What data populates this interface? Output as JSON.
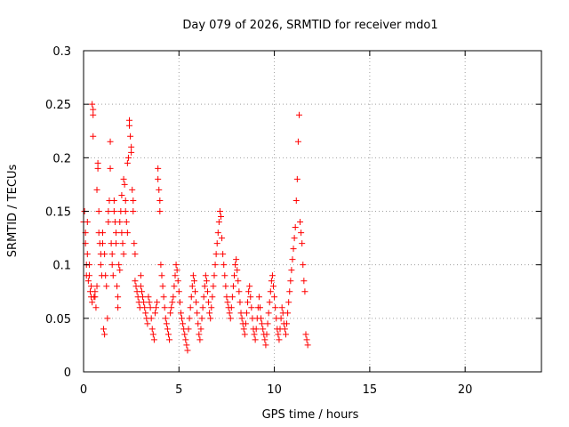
{
  "chart_data": {
    "type": "scatter",
    "title": "Day 079 of 2026, SRMTID for receiver mdo1",
    "xlabel": "GPS time / hours",
    "ylabel": "SRMTID / TECUs",
    "xlim": [
      0,
      24
    ],
    "ylim": [
      0,
      0.3
    ],
    "xticks": [
      0,
      5,
      10,
      15,
      20
    ],
    "xtick_labels": [
      "0",
      "5",
      "10",
      "15",
      "20"
    ],
    "yticks": [
      0,
      0.05,
      0.1,
      0.15,
      0.2,
      0.25,
      0.3
    ],
    "ytick_labels": [
      "0",
      "0.05",
      "0.1",
      "0.15",
      "0.2",
      "0.25",
      "0.3"
    ],
    "grid": true,
    "marker": "+",
    "color": "#ff0000",
    "series": [
      {
        "name": "SRMTID",
        "points": [
          [
            0.0,
            0.14
          ],
          [
            0.05,
            0.15
          ],
          [
            0.1,
            0.13
          ],
          [
            0.1,
            0.12
          ],
          [
            0.15,
            0.1
          ],
          [
            0.15,
            0.09
          ],
          [
            0.2,
            0.11
          ],
          [
            0.2,
            0.14
          ],
          [
            0.25,
            0.085
          ],
          [
            0.3,
            0.09
          ],
          [
            0.3,
            0.1
          ],
          [
            0.35,
            0.075
          ],
          [
            0.4,
            0.07
          ],
          [
            0.4,
            0.08
          ],
          [
            0.45,
            0.065
          ],
          [
            0.45,
            0.25
          ],
          [
            0.5,
            0.245
          ],
          [
            0.5,
            0.24
          ],
          [
            0.5,
            0.22
          ],
          [
            0.55,
            0.07
          ],
          [
            0.6,
            0.075
          ],
          [
            0.6,
            0.07
          ],
          [
            0.65,
            0.06
          ],
          [
            0.7,
            0.17
          ],
          [
            0.7,
            0.08
          ],
          [
            0.75,
            0.19
          ],
          [
            0.75,
            0.195
          ],
          [
            0.8,
            0.15
          ],
          [
            0.8,
            0.13
          ],
          [
            0.85,
            0.12
          ],
          [
            0.9,
            0.11
          ],
          [
            0.9,
            0.1
          ],
          [
            0.95,
            0.09
          ],
          [
            1.0,
            0.12
          ],
          [
            1.0,
            0.13
          ],
          [
            1.05,
            0.04
          ],
          [
            1.1,
            0.035
          ],
          [
            1.1,
            0.11
          ],
          [
            1.15,
            0.09
          ],
          [
            1.2,
            0.08
          ],
          [
            1.25,
            0.05
          ],
          [
            1.3,
            0.14
          ],
          [
            1.3,
            0.15
          ],
          [
            1.35,
            0.16
          ],
          [
            1.4,
            0.19
          ],
          [
            1.4,
            0.215
          ],
          [
            1.45,
            0.12
          ],
          [
            1.5,
            0.11
          ],
          [
            1.5,
            0.1
          ],
          [
            1.55,
            0.09
          ],
          [
            1.6,
            0.16
          ],
          [
            1.6,
            0.15
          ],
          [
            1.65,
            0.14
          ],
          [
            1.7,
            0.13
          ],
          [
            1.7,
            0.12
          ],
          [
            1.75,
            0.08
          ],
          [
            1.8,
            0.07
          ],
          [
            1.8,
            0.06
          ],
          [
            1.85,
            0.1
          ],
          [
            1.9,
            0.095
          ],
          [
            1.9,
            0.14
          ],
          [
            1.95,
            0.15
          ],
          [
            2.0,
            0.165
          ],
          [
            2.0,
            0.13
          ],
          [
            2.05,
            0.12
          ],
          [
            2.1,
            0.11
          ],
          [
            2.1,
            0.18
          ],
          [
            2.15,
            0.175
          ],
          [
            2.2,
            0.16
          ],
          [
            2.2,
            0.15
          ],
          [
            2.25,
            0.14
          ],
          [
            2.3,
            0.13
          ],
          [
            2.3,
            0.195
          ],
          [
            2.35,
            0.2
          ],
          [
            2.4,
            0.235
          ],
          [
            2.4,
            0.23
          ],
          [
            2.45,
            0.22
          ],
          [
            2.5,
            0.21
          ],
          [
            2.5,
            0.205
          ],
          [
            2.55,
            0.17
          ],
          [
            2.6,
            0.16
          ],
          [
            2.6,
            0.15
          ],
          [
            2.65,
            0.12
          ],
          [
            2.7,
            0.11
          ],
          [
            2.7,
            0.085
          ],
          [
            2.75,
            0.08
          ],
          [
            2.8,
            0.075
          ],
          [
            2.85,
            0.07
          ],
          [
            2.9,
            0.065
          ],
          [
            2.95,
            0.06
          ],
          [
            3.0,
            0.08
          ],
          [
            3.0,
            0.09
          ],
          [
            3.05,
            0.075
          ],
          [
            3.1,
            0.07
          ],
          [
            3.15,
            0.065
          ],
          [
            3.2,
            0.06
          ],
          [
            3.25,
            0.055
          ],
          [
            3.3,
            0.05
          ],
          [
            3.35,
            0.045
          ],
          [
            3.4,
            0.07
          ],
          [
            3.45,
            0.065
          ],
          [
            3.5,
            0.06
          ],
          [
            3.55,
            0.05
          ],
          [
            3.6,
            0.04
          ],
          [
            3.65,
            0.035
          ],
          [
            3.7,
            0.03
          ],
          [
            3.75,
            0.055
          ],
          [
            3.8,
            0.06
          ],
          [
            3.85,
            0.065
          ],
          [
            3.9,
            0.19
          ],
          [
            3.9,
            0.18
          ],
          [
            3.95,
            0.17
          ],
          [
            4.0,
            0.16
          ],
          [
            4.0,
            0.15
          ],
          [
            4.05,
            0.1
          ],
          [
            4.1,
            0.09
          ],
          [
            4.15,
            0.08
          ],
          [
            4.2,
            0.07
          ],
          [
            4.25,
            0.06
          ],
          [
            4.3,
            0.05
          ],
          [
            4.35,
            0.045
          ],
          [
            4.4,
            0.04
          ],
          [
            4.45,
            0.035
          ],
          [
            4.5,
            0.03
          ],
          [
            4.55,
            0.055
          ],
          [
            4.6,
            0.06
          ],
          [
            4.65,
            0.065
          ],
          [
            4.7,
            0.07
          ],
          [
            4.75,
            0.08
          ],
          [
            4.8,
            0.09
          ],
          [
            4.85,
            0.1
          ],
          [
            4.9,
            0.095
          ],
          [
            4.95,
            0.085
          ],
          [
            5.0,
            0.075
          ],
          [
            5.05,
            0.065
          ],
          [
            5.1,
            0.055
          ],
          [
            5.15,
            0.05
          ],
          [
            5.2,
            0.045
          ],
          [
            5.25,
            0.04
          ],
          [
            5.3,
            0.035
          ],
          [
            5.35,
            0.03
          ],
          [
            5.4,
            0.025
          ],
          [
            5.45,
            0.02
          ],
          [
            5.5,
            0.04
          ],
          [
            5.55,
            0.05
          ],
          [
            5.6,
            0.06
          ],
          [
            5.65,
            0.07
          ],
          [
            5.7,
            0.08
          ],
          [
            5.75,
            0.09
          ],
          [
            5.8,
            0.085
          ],
          [
            5.85,
            0.075
          ],
          [
            5.9,
            0.065
          ],
          [
            5.95,
            0.055
          ],
          [
            6.0,
            0.045
          ],
          [
            6.05,
            0.035
          ],
          [
            6.1,
            0.03
          ],
          [
            6.15,
            0.04
          ],
          [
            6.2,
            0.05
          ],
          [
            6.25,
            0.06
          ],
          [
            6.3,
            0.07
          ],
          [
            6.35,
            0.08
          ],
          [
            6.4,
            0.09
          ],
          [
            6.45,
            0.085
          ],
          [
            6.5,
            0.075
          ],
          [
            6.55,
            0.065
          ],
          [
            6.6,
            0.055
          ],
          [
            6.65,
            0.05
          ],
          [
            6.7,
            0.06
          ],
          [
            6.75,
            0.07
          ],
          [
            6.8,
            0.08
          ],
          [
            6.85,
            0.09
          ],
          [
            6.9,
            0.1
          ],
          [
            6.95,
            0.11
          ],
          [
            7.0,
            0.12
          ],
          [
            7.05,
            0.13
          ],
          [
            7.1,
            0.14
          ],
          [
            7.15,
            0.15
          ],
          [
            7.2,
            0.145
          ],
          [
            7.25,
            0.125
          ],
          [
            7.3,
            0.11
          ],
          [
            7.35,
            0.1
          ],
          [
            7.4,
            0.09
          ],
          [
            7.45,
            0.08
          ],
          [
            7.5,
            0.07
          ],
          [
            7.55,
            0.065
          ],
          [
            7.6,
            0.06
          ],
          [
            7.65,
            0.055
          ],
          [
            7.7,
            0.05
          ],
          [
            7.75,
            0.06
          ],
          [
            7.8,
            0.07
          ],
          [
            7.85,
            0.08
          ],
          [
            7.9,
            0.09
          ],
          [
            7.95,
            0.1
          ],
          [
            8.0,
            0.105
          ],
          [
            8.05,
            0.095
          ],
          [
            8.1,
            0.085
          ],
          [
            8.15,
            0.075
          ],
          [
            8.2,
            0.065
          ],
          [
            8.25,
            0.055
          ],
          [
            8.3,
            0.05
          ],
          [
            8.35,
            0.045
          ],
          [
            8.4,
            0.04
          ],
          [
            8.45,
            0.035
          ],
          [
            8.5,
            0.045
          ],
          [
            8.55,
            0.055
          ],
          [
            8.6,
            0.065
          ],
          [
            8.65,
            0.075
          ],
          [
            8.7,
            0.08
          ],
          [
            8.75,
            0.07
          ],
          [
            8.8,
            0.06
          ],
          [
            8.85,
            0.05
          ],
          [
            8.9,
            0.04
          ],
          [
            8.95,
            0.035
          ],
          [
            9.0,
            0.03
          ],
          [
            9.05,
            0.04
          ],
          [
            9.1,
            0.05
          ],
          [
            9.15,
            0.06
          ],
          [
            9.2,
            0.07
          ],
          [
            9.25,
            0.06
          ],
          [
            9.3,
            0.05
          ],
          [
            9.35,
            0.045
          ],
          [
            9.4,
            0.04
          ],
          [
            9.45,
            0.035
          ],
          [
            9.5,
            0.03
          ],
          [
            9.55,
            0.025
          ],
          [
            9.6,
            0.035
          ],
          [
            9.65,
            0.045
          ],
          [
            9.7,
            0.055
          ],
          [
            9.75,
            0.065
          ],
          [
            9.8,
            0.075
          ],
          [
            9.85,
            0.085
          ],
          [
            9.9,
            0.09
          ],
          [
            9.95,
            0.08
          ],
          [
            10.0,
            0.07
          ],
          [
            10.05,
            0.06
          ],
          [
            10.1,
            0.05
          ],
          [
            10.15,
            0.04
          ],
          [
            10.2,
            0.035
          ],
          [
            10.25,
            0.03
          ],
          [
            10.3,
            0.04
          ],
          [
            10.35,
            0.05
          ],
          [
            10.4,
            0.06
          ],
          [
            10.45,
            0.055
          ],
          [
            10.5,
            0.045
          ],
          [
            10.55,
            0.04
          ],
          [
            10.6,
            0.035
          ],
          [
            10.65,
            0.045
          ],
          [
            10.7,
            0.055
          ],
          [
            10.75,
            0.065
          ],
          [
            10.8,
            0.075
          ],
          [
            10.85,
            0.085
          ],
          [
            10.9,
            0.095
          ],
          [
            10.95,
            0.105
          ],
          [
            11.0,
            0.115
          ],
          [
            11.05,
            0.125
          ],
          [
            11.1,
            0.135
          ],
          [
            11.15,
            0.16
          ],
          [
            11.2,
            0.18
          ],
          [
            11.25,
            0.215
          ],
          [
            11.3,
            0.24
          ],
          [
            11.35,
            0.14
          ],
          [
            11.4,
            0.13
          ],
          [
            11.45,
            0.12
          ],
          [
            11.5,
            0.1
          ],
          [
            11.55,
            0.085
          ],
          [
            11.6,
            0.075
          ],
          [
            11.65,
            0.035
          ],
          [
            11.7,
            0.03
          ],
          [
            11.75,
            0.025
          ]
        ]
      }
    ]
  }
}
